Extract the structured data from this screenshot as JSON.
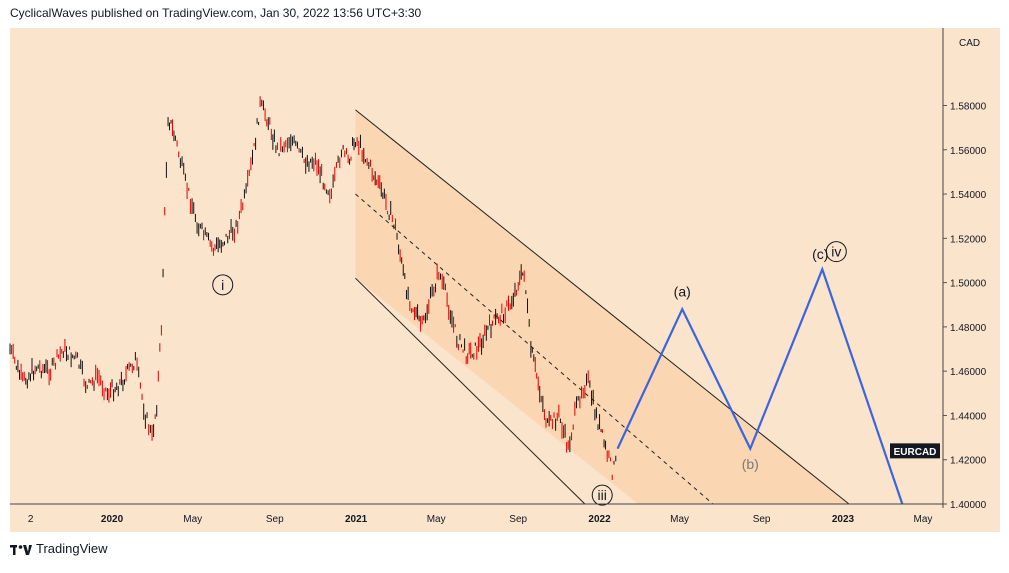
{
  "header": {
    "publish_line": "CyclicalWaves published on TradingView.com, Jan 30, 2022 13:56 UTC+3:30"
  },
  "footer": {
    "brand": "TradingView",
    "logo_icon": "tradingview-logo-icon"
  },
  "colors": {
    "background": "#fbe4cc",
    "channel_fill": "#f9d3ad",
    "candles": "#e00000",
    "wicks": "#111111",
    "projection": "#3b64e0",
    "price_tag": "#131722"
  },
  "chart_data": {
    "type": "line",
    "symbol_tag": "EURCAD",
    "currency_label": "CAD",
    "y_axis": {
      "ticks": [
        1.58,
        1.56,
        1.54,
        1.52,
        1.5,
        1.48,
        1.46,
        1.44,
        1.42,
        1.4
      ],
      "tick_labels": [
        "1.58000",
        "1.56000",
        "1.54000",
        "1.52000",
        "1.50000",
        "1.48000",
        "1.46000",
        "1.44000",
        "1.42000",
        "1.40000"
      ],
      "ylim": [
        1.4,
        1.615
      ]
    },
    "x_axis": {
      "ticks": [
        {
          "label": "2",
          "date": "2019-09-01",
          "bold": false
        },
        {
          "label": "2020",
          "date": "2020-01-01",
          "bold": true
        },
        {
          "label": "May",
          "date": "2020-05-01",
          "bold": false
        },
        {
          "label": "Sep",
          "date": "2020-09-01",
          "bold": false
        },
        {
          "label": "2021",
          "date": "2021-01-01",
          "bold": true
        },
        {
          "label": "May",
          "date": "2021-05-01",
          "bold": false
        },
        {
          "label": "Sep",
          "date": "2021-09-01",
          "bold": false
        },
        {
          "label": "2022",
          "date": "2022-01-01",
          "bold": true
        },
        {
          "label": "May",
          "date": "2022-05-01",
          "bold": false
        },
        {
          "label": "Sep",
          "date": "2022-09-01",
          "bold": false
        },
        {
          "label": "2023",
          "date": "2023-01-01",
          "bold": true
        },
        {
          "label": "May",
          "date": "2023-05-01",
          "bold": false
        }
      ]
    },
    "price_path": [
      [
        "2019-08-01",
        1.47
      ],
      [
        "2019-08-20",
        1.455
      ],
      [
        "2019-09-10",
        1.462
      ],
      [
        "2019-10-01",
        1.46
      ],
      [
        "2019-10-20",
        1.47
      ],
      [
        "2019-11-10",
        1.465
      ],
      [
        "2019-11-25",
        1.452
      ],
      [
        "2019-12-10",
        1.458
      ],
      [
        "2019-12-25",
        1.45
      ],
      [
        "2020-01-15",
        1.455
      ],
      [
        "2020-02-05",
        1.465
      ],
      [
        "2020-02-20",
        1.44
      ],
      [
        "2020-03-01",
        1.43
      ],
      [
        "2020-03-08",
        1.445
      ],
      [
        "2020-03-15",
        1.48
      ],
      [
        "2020-03-20",
        1.53
      ],
      [
        "2020-03-25",
        1.575
      ],
      [
        "2020-04-05",
        1.565
      ],
      [
        "2020-04-20",
        1.545
      ],
      [
        "2020-05-10",
        1.525
      ],
      [
        "2020-06-01",
        1.515
      ],
      [
        "2020-06-20",
        1.52
      ],
      [
        "2020-07-05",
        1.525
      ],
      [
        "2020-07-20",
        1.54
      ],
      [
        "2020-08-01",
        1.56
      ],
      [
        "2020-08-10",
        1.58
      ],
      [
        "2020-08-20",
        1.575
      ],
      [
        "2020-09-05",
        1.56
      ],
      [
        "2020-09-25",
        1.565
      ],
      [
        "2020-10-15",
        1.555
      ],
      [
        "2020-11-01",
        1.555
      ],
      [
        "2020-11-15",
        1.545
      ],
      [
        "2020-11-25",
        1.54
      ],
      [
        "2020-12-10",
        1.56
      ],
      [
        "2020-12-20",
        1.555
      ],
      [
        "2020-12-31",
        1.565
      ],
      [
        "2021-01-10",
        1.56
      ],
      [
        "2021-01-25",
        1.55
      ],
      [
        "2021-02-10",
        1.54
      ],
      [
        "2021-03-01",
        1.525
      ],
      [
        "2021-03-15",
        1.5
      ],
      [
        "2021-03-25",
        1.49
      ],
      [
        "2021-04-10",
        1.48
      ],
      [
        "2021-04-25",
        1.495
      ],
      [
        "2021-05-05",
        1.505
      ],
      [
        "2021-05-15",
        1.495
      ],
      [
        "2021-06-01",
        1.475
      ],
      [
        "2021-06-15",
        1.468
      ],
      [
        "2021-07-01",
        1.47
      ],
      [
        "2021-07-20",
        1.48
      ],
      [
        "2021-08-05",
        1.485
      ],
      [
        "2021-08-20",
        1.49
      ],
      [
        "2021-09-01",
        1.5
      ],
      [
        "2021-09-10",
        1.505
      ],
      [
        "2021-09-20",
        1.47
      ],
      [
        "2021-10-01",
        1.455
      ],
      [
        "2021-10-15",
        1.435
      ],
      [
        "2021-11-01",
        1.44
      ],
      [
        "2021-11-15",
        1.425
      ],
      [
        "2021-11-25",
        1.44
      ],
      [
        "2021-12-05",
        1.452
      ],
      [
        "2021-12-15",
        1.455
      ],
      [
        "2021-12-25",
        1.442
      ],
      [
        "2022-01-01",
        1.435
      ],
      [
        "2022-01-10",
        1.425
      ],
      [
        "2022-01-20",
        1.415
      ],
      [
        "2022-01-28",
        1.42
      ]
    ],
    "projection": [
      [
        "2022-01-28",
        1.425
      ],
      [
        "2022-05-05",
        1.488
      ],
      [
        "2022-08-15",
        1.425
      ],
      [
        "2022-12-01",
        1.506
      ],
      [
        "2023-03-31",
        1.4
      ]
    ],
    "channel": {
      "upper": [
        [
          "2020-12-31",
          1.578
        ],
        [
          "2023-01-10",
          1.4
        ]
      ],
      "middle": [
        [
          "2020-12-31",
          1.54
        ],
        [
          "2022-06-20",
          1.4
        ]
      ],
      "lower": [
        [
          "2020-12-31",
          1.502
        ],
        [
          "2021-12-10",
          1.4
        ]
      ]
    },
    "wave_labels": [
      {
        "text": "i",
        "date": "2020-06-15",
        "price": 1.499,
        "circled": true
      },
      {
        "text": "iii",
        "date": "2022-01-05",
        "price": 1.404,
        "circled": true
      },
      {
        "text": "(a)",
        "date": "2022-05-05",
        "price": 1.496,
        "circled": false
      },
      {
        "text": "(b)",
        "date": "2022-08-15",
        "price": 1.418,
        "circled": false
      },
      {
        "text": "(c)",
        "date": "2022-11-28",
        "price": 1.513,
        "circled": false
      },
      {
        "text": "iv",
        "date": "2022-12-22",
        "price": 1.514,
        "circled": true
      }
    ],
    "last_price_tag": 1.424
  }
}
